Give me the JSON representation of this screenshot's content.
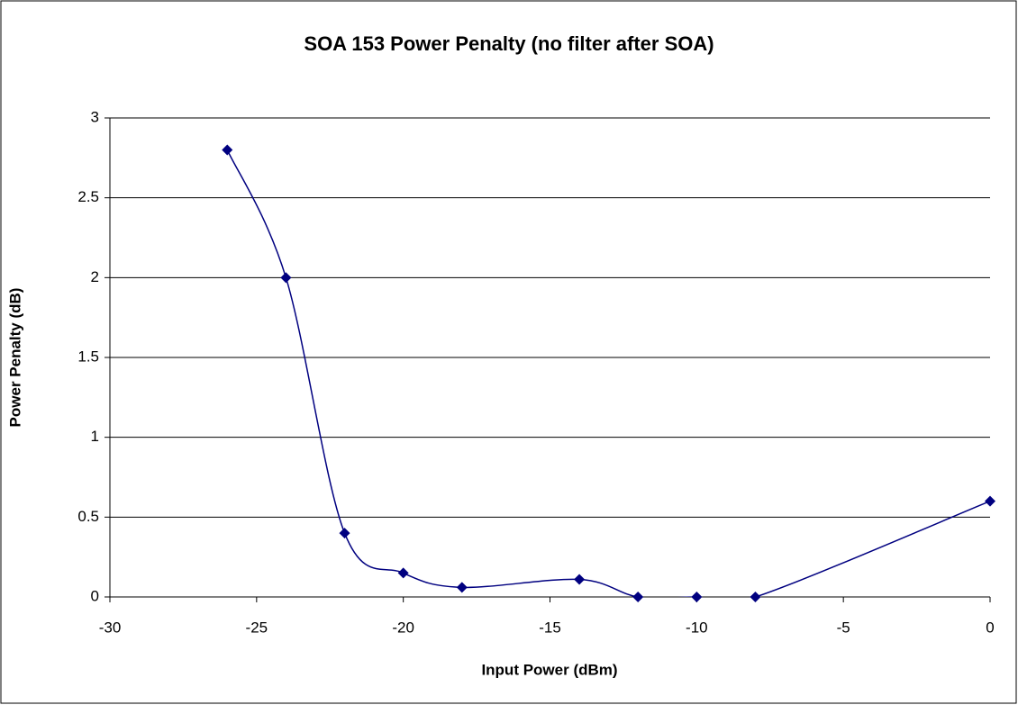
{
  "chart_data": {
    "type": "line",
    "title": "SOA 153 Power Penalty (no filter after SOA)",
    "x_label": "Input Power (dBm)",
    "y_label": "Power Penalty (dB)",
    "x": [
      -26,
      -24,
      -22,
      -20,
      -18,
      -14,
      -12,
      -10,
      -8,
      0
    ],
    "series": [
      {
        "name": "Power Penalty",
        "color": "#000080",
        "values": [
          2.8,
          2.0,
          0.4,
          0.15,
          0.06,
          0.11,
          0.0,
          0.0,
          0.0,
          0.6
        ]
      }
    ],
    "xlim": [
      -30,
      0
    ],
    "xticks": [
      -30,
      -25,
      -20,
      -15,
      -10,
      -5,
      0
    ],
    "ylim": [
      0,
      3
    ],
    "yticks": [
      0,
      0.5,
      1,
      1.5,
      2,
      2.5,
      3
    ],
    "grid": true,
    "smooth": true
  }
}
